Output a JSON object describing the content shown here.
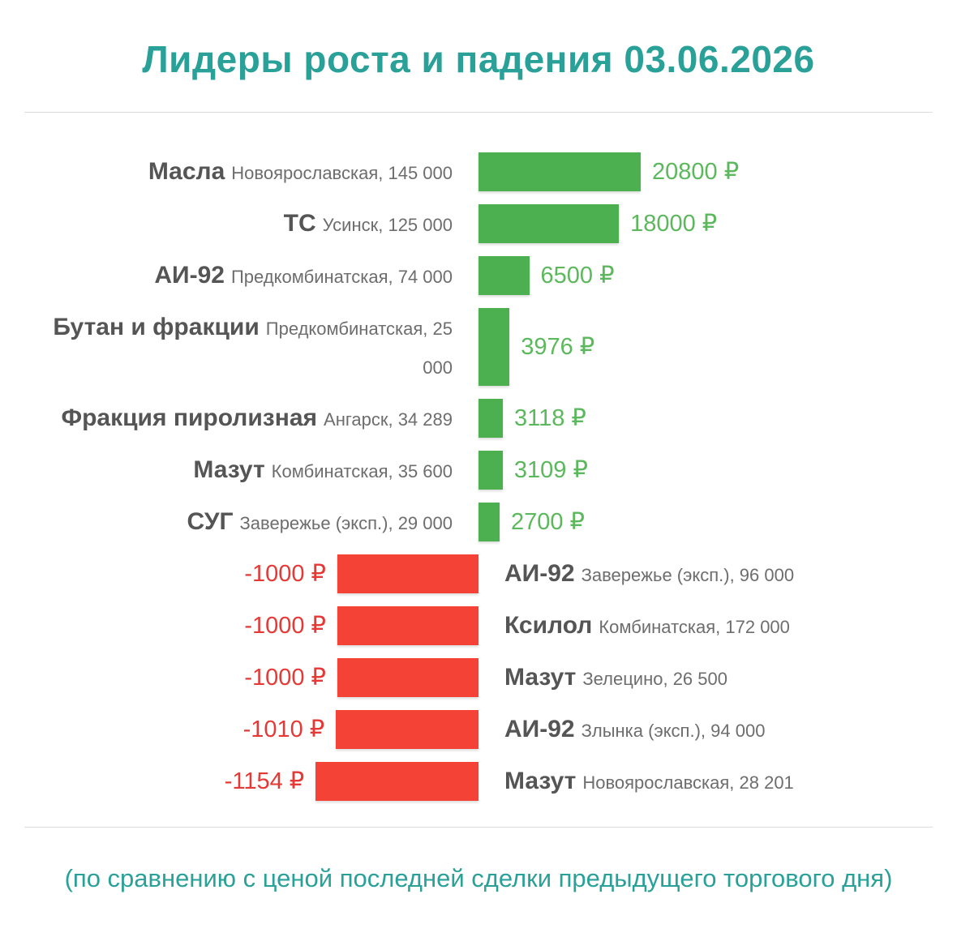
{
  "title": "Лидеры роста и падения 03.06.2026",
  "footnote": "(по сравнению с ценой последней сделки предыдущего торгового дня)",
  "colors": {
    "up": "#4caf50",
    "down": "#f44336",
    "title": "#2aa198",
    "up_text": "#5cb85c",
    "down_text": "#e53935"
  },
  "chart_data": {
    "type": "bar",
    "orientation": "horizontal",
    "currency": "₽",
    "rows": [
      {
        "product": "Масла",
        "location": "Новоярославская, 145 000",
        "value": 20800,
        "label": "20800 ₽"
      },
      {
        "product": "ТС",
        "location": "Усинск, 125 000",
        "value": 18000,
        "label": "18000 ₽"
      },
      {
        "product": "АИ-92",
        "location": "Предкомбинатская, 74 000",
        "value": 6500,
        "label": "6500 ₽"
      },
      {
        "product": "Бутан и фракции",
        "location": "Предкомбинатская, 25 000",
        "value": 3976,
        "label": "3976 ₽"
      },
      {
        "product": "Фракция пиролизная",
        "location": "Ангарск, 34 289",
        "value": 3118,
        "label": "3118 ₽"
      },
      {
        "product": "Мазут",
        "location": "Комбинатская, 35 600",
        "value": 3109,
        "label": "3109 ₽"
      },
      {
        "product": "СУГ",
        "location": "Заверeжье (эксп.), 29 000",
        "value": 2700,
        "label": "2700 ₽"
      },
      {
        "product": "АИ-92",
        "location": "Заверeжье (эксп.), 96 000",
        "value": -1000,
        "label": "-1000 ₽"
      },
      {
        "product": "Ксилол",
        "location": "Комбинатская, 172 000",
        "value": -1000,
        "label": "-1000 ₽"
      },
      {
        "product": "Мазут",
        "location": "Зелецино, 26 500",
        "value": -1000,
        "label": "-1000 ₽"
      },
      {
        "product": "АИ-92",
        "location": "Злынка (эксп.), 94 000",
        "value": -1010,
        "label": "-1010 ₽"
      },
      {
        "product": "Мазут",
        "location": "Новоярославская, 28 201",
        "value": -1154,
        "label": "-1154 ₽"
      }
    ]
  }
}
